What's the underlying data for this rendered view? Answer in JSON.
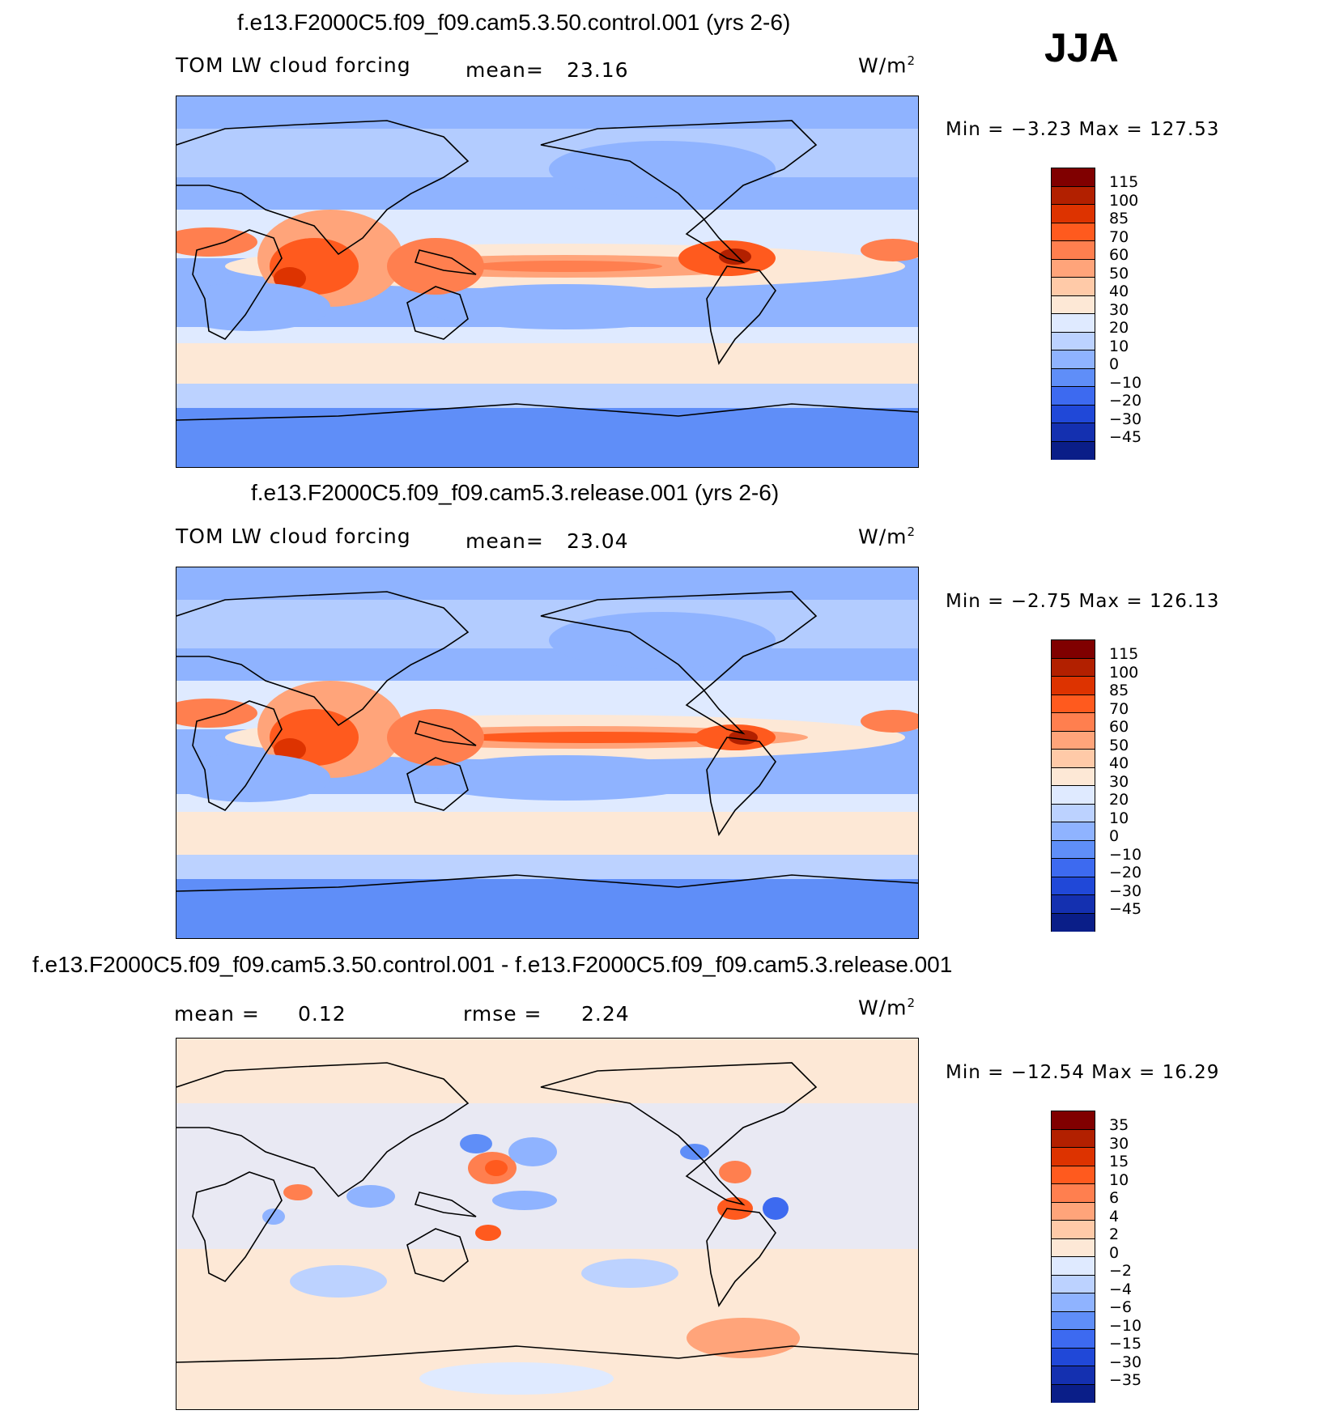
{
  "season": "JJA",
  "colors": {
    "main_scale": [
      "#800000",
      "#b22000",
      "#dd3300",
      "#ff5a1e",
      "#ff7f4f",
      "#ffa47a",
      "#ffcaa8",
      "#fde8d6",
      "#dfeaff",
      "#bcd2ff",
      "#8fb3ff",
      "#5f8ef8",
      "#3d6af0",
      "#2048d8",
      "#1430b0",
      "#0a1e88"
    ],
    "diff_scale": [
      "#800000",
      "#b22000",
      "#dd3300",
      "#ff5a1e",
      "#ff7f4f",
      "#ffa47a",
      "#ffcaa8",
      "#fde8d6",
      "#dfeaff",
      "#bcd2ff",
      "#8fb3ff",
      "#5f8ef8",
      "#3d6af0",
      "#2048d8",
      "#1430b0",
      "#0a1e88"
    ]
  },
  "panels": [
    {
      "title": "f.e13.F2000C5.f09_f09.cam5.3.50.control.001 (yrs 2-6)",
      "variable": "TOM LW cloud forcing",
      "stat_label": "mean=",
      "stat_value": "23.16",
      "units": "W/m",
      "units_exp": "2",
      "minmax": "Min =   −3.23 Max =  127.53",
      "colorbar_labels": [
        "115",
        "100",
        "85",
        "70",
        "60",
        "50",
        "40",
        "30",
        "20",
        "10",
        "0",
        "−10",
        "−20",
        "−30",
        "−45"
      ]
    },
    {
      "title": "f.e13.F2000C5.f09_f09.cam5.3.release.001 (yrs 2-6)",
      "variable": "TOM LW cloud forcing",
      "stat_label": "mean=",
      "stat_value": "23.04",
      "units": "W/m",
      "units_exp": "2",
      "minmax": "Min =   −2.75 Max =  126.13",
      "colorbar_labels": [
        "115",
        "100",
        "85",
        "70",
        "60",
        "50",
        "40",
        "30",
        "20",
        "10",
        "0",
        "−10",
        "−20",
        "−30",
        "−45"
      ]
    },
    {
      "title": "f.e13.F2000C5.f09_f09.cam5.3.50.control.001 - f.e13.F2000C5.f09_f09.cam5.3.release.001",
      "stat_label": "mean =",
      "stat_value": "0.12",
      "rmse_label": "rmse =",
      "rmse_value": "2.24",
      "units": "W/m",
      "units_exp": "2",
      "minmax": "Min = −12.54 Max =   16.29",
      "colorbar_labels": [
        "35",
        "30",
        "15",
        "10",
        "6",
        "4",
        "2",
        "0",
        "−2",
        "−4",
        "−6",
        "−10",
        "−15",
        "−30",
        "−35"
      ]
    }
  ],
  "chart_data": [
    {
      "type": "heatmap",
      "title": "f.e13.F2000C5.f09_f09.cam5.3.50.control.001 (yrs 2-6)",
      "field": "TOM LW cloud forcing",
      "units": "W/m2",
      "mean": 23.16,
      "min": -3.23,
      "max": 127.53,
      "levels": [
        -45,
        -30,
        -20,
        -10,
        0,
        10,
        20,
        30,
        40,
        50,
        60,
        70,
        85,
        100,
        115
      ]
    },
    {
      "type": "heatmap",
      "title": "f.e13.F2000C5.f09_f09.cam5.3.release.001 (yrs 2-6)",
      "field": "TOM LW cloud forcing",
      "units": "W/m2",
      "mean": 23.04,
      "min": -2.75,
      "max": 126.13,
      "levels": [
        -45,
        -30,
        -20,
        -10,
        0,
        10,
        20,
        30,
        40,
        50,
        60,
        70,
        85,
        100,
        115
      ]
    },
    {
      "type": "heatmap",
      "title": "f.e13.F2000C5.f09_f09.cam5.3.50.control.001 - f.e13.F2000C5.f09_f09.cam5.3.release.001",
      "units": "W/m2",
      "mean": 0.12,
      "rmse": 2.24,
      "min": -12.54,
      "max": 16.29,
      "levels": [
        -35,
        -30,
        -15,
        -10,
        -6,
        -4,
        -2,
        0,
        2,
        4,
        6,
        10,
        15,
        30,
        35
      ]
    }
  ]
}
